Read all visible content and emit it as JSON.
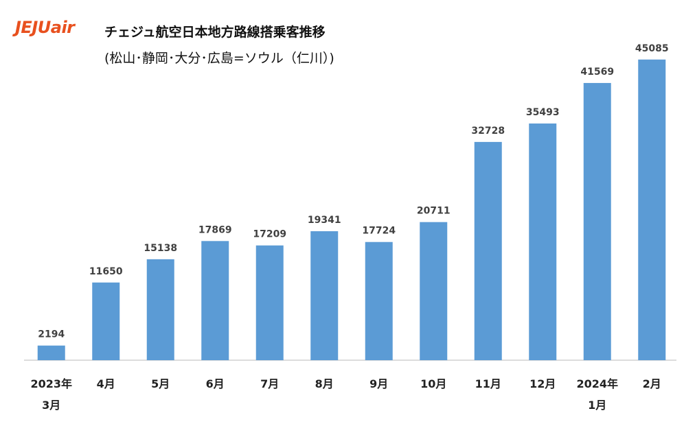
{
  "logo_text": "JEJUair",
  "colors": {
    "bar": "#5b9bd5",
    "logo": "#e8501e"
  },
  "chart_data": {
    "type": "bar",
    "title": "チェジュ航空日本地方路線搭乗客推移",
    "subtitle": "(松山･静岡･大分･広島=ソウル（仁川）)",
    "categories": [
      [
        "2023年",
        "3月"
      ],
      [
        "4月"
      ],
      [
        "5月"
      ],
      [
        "6月"
      ],
      [
        "7月"
      ],
      [
        "8月"
      ],
      [
        "9月"
      ],
      [
        "10月"
      ],
      [
        "11月"
      ],
      [
        "12月"
      ],
      [
        "2024年",
        "1月"
      ],
      [
        "2月"
      ]
    ],
    "values": [
      2194,
      11650,
      15138,
      17869,
      17209,
      19341,
      17724,
      20711,
      32728,
      35493,
      41569,
      45085
    ],
    "ylim": [
      0,
      50000
    ],
    "grid": false,
    "legend": "none",
    "data_labels": true
  }
}
